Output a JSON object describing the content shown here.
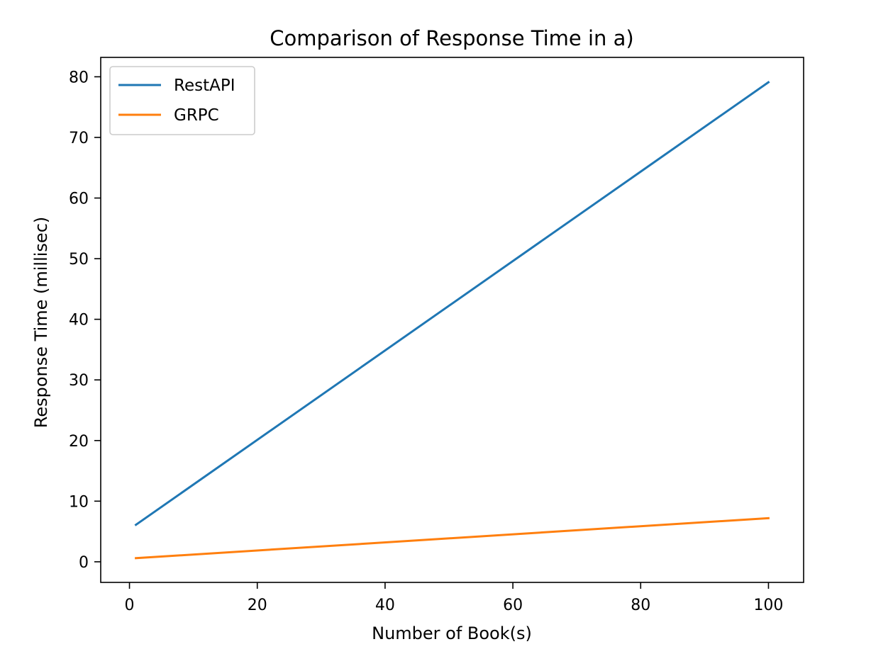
{
  "chart_data": {
    "type": "line",
    "title": "Comparison of Response Time in a)",
    "xlabel": "Number of Book(s)",
    "ylabel": "Response Time (millisec)",
    "xlim": [
      -4.5,
      105.5
    ],
    "ylim": [
      -3.4,
      83.2
    ],
    "xticks": [
      0,
      20,
      40,
      60,
      80,
      100
    ],
    "yticks": [
      0,
      10,
      20,
      30,
      40,
      50,
      60,
      70,
      80
    ],
    "grid": false,
    "legend_position": "upper-left",
    "series": [
      {
        "name": "RestAPI",
        "color": "#1f77b4",
        "x": [
          1,
          100
        ],
        "y": [
          6.1,
          79.1
        ]
      },
      {
        "name": "GRPC",
        "color": "#ff7f0e",
        "x": [
          1,
          100
        ],
        "y": [
          0.6,
          7.2
        ]
      }
    ]
  }
}
